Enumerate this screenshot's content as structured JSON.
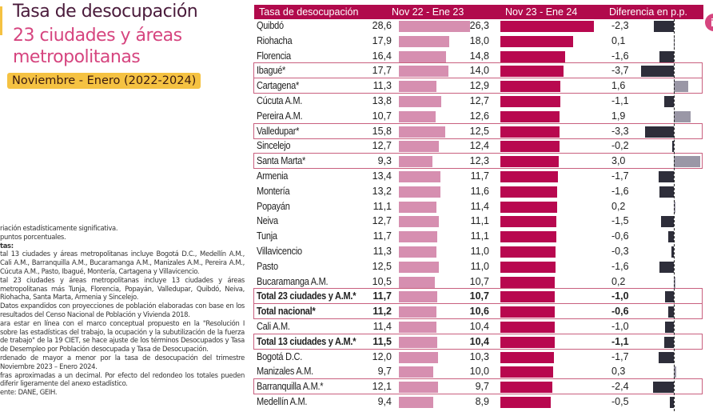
{
  "title": "Tasa de desocupación",
  "subtitle": "23 ciudades y áreas metropolitanas",
  "period": "Noviembre - Enero (2022-2024)",
  "notes": [
    "riación estadísticamente significativa.",
    "puntos porcentuales.",
    "tas:",
    "tal 13 ciudades y áreas metropolitanas incluye Bogotá D.C., Medellín A.M., Cali A.M., Barranquilla A.M., Bucaramanga A.M., Manizales A.M., Pereira A.M., Cúcuta A.M., Pasto, Ibagué, Montería, Cartagena y Villavicencio.",
    "tal 23 ciudades y áreas metropolitanas incluye 13 ciudades y áreas metropolitanas más Tunja, Florencia, Popayán, Valledupar, Quibdó, Neiva, Riohacha, Santa Marta, Armenia y Sincelejo.",
    "Datos expandidos con proyecciones de población elaboradas con base en los resultados del Censo Nacional de Población y Vivienda 2018.",
    "ara estar en línea con el marco conceptual propuesto en la \"Resolución I sobre las estadísticas del trabajo, la ocupación y la subutilización de la fuerza de trabajo\" de la 19 CIET, se hace ajuste de los términos Desocupados y Tasa de Desempleo por Población desocupada y Tasa de Desocupación.",
    "rdenado de mayor a menor por la tasa de desocupación del trimestre Noviembre 2023 – Enero 2024.",
    "fras aproximadas a un decimal. Por efecto del redondeo los totales pueden diferir ligeramente del anexo estadístico.",
    "ente: DANE, GEIH."
  ],
  "colors": {
    "header": "#b10a4c",
    "bar1": "#d68fb0",
    "bar2": "#b8084f",
    "neg": "#2e2e3a",
    "pos": "#9a97a6"
  },
  "chart_data": {
    "type": "table",
    "title": "Tasa de desocupación",
    "columns": [
      "Tasa de desocupación",
      "Nov 22 - Ene 23",
      "Nov 23 - Ene 24",
      "Diferencia en p.p."
    ],
    "rows": [
      {
        "name": "Quibdó",
        "v1": "28,6",
        "v2": "26,3",
        "d": "-2,3"
      },
      {
        "name": "Riohacha",
        "v1": "17,9",
        "v2": "18,0",
        "d": "0,1"
      },
      {
        "name": "Florencia",
        "v1": "16,4",
        "v2": "14,8",
        "d": "-1,6"
      },
      {
        "name": "Ibagué*",
        "v1": "17,7",
        "v2": "14,0",
        "d": "-3,7",
        "box": true
      },
      {
        "name": "Cartagena*",
        "v1": "11,3",
        "v2": "12,9",
        "d": "1,6",
        "box": true
      },
      {
        "name": "Cúcuta A.M.",
        "v1": "13,8",
        "v2": "12,7",
        "d": "-1,1"
      },
      {
        "name": "Pereira A.M.",
        "v1": "10,7",
        "v2": "12,6",
        "d": "1,9"
      },
      {
        "name": "Valledupar*",
        "v1": "15,8",
        "v2": "12,5",
        "d": "-3,3",
        "box": true
      },
      {
        "name": "Sincelejo",
        "v1": "12,7",
        "v2": "12,4",
        "d": "-0,2"
      },
      {
        "name": "Santa Marta*",
        "v1": "9,3",
        "v2": "12,3",
        "d": "3,0",
        "box": true
      },
      {
        "name": "Armenia",
        "v1": "13,4",
        "v2": "11,7",
        "d": "-1,7"
      },
      {
        "name": "Montería",
        "v1": "13,2",
        "v2": "11,6",
        "d": "-1,6"
      },
      {
        "name": "Popayán",
        "v1": "11,1",
        "v2": "11,4",
        "d": "0,2"
      },
      {
        "name": "Neiva",
        "v1": "12,7",
        "v2": "11,1",
        "d": "-1,5"
      },
      {
        "name": "Tunja",
        "v1": "11,7",
        "v2": "11,1",
        "d": "-0,6"
      },
      {
        "name": "Villavicencio",
        "v1": "11,3",
        "v2": "11,0",
        "d": "-0,3"
      },
      {
        "name": "Pasto",
        "v1": "12,5",
        "v2": "11,0",
        "d": "-1,6"
      },
      {
        "name": "Bucaramanga A.M.",
        "v1": "10,5",
        "v2": "10,7",
        "d": "0,2"
      },
      {
        "name": "Total 23 ciudades y A.M.*",
        "v1": "11,7",
        "v2": "10,7",
        "d": "-1,0",
        "box": true,
        "bold": true
      },
      {
        "name": "Total nacional*",
        "v1": "11,2",
        "v2": "10,6",
        "d": "-0,6",
        "box": true,
        "bold": true
      },
      {
        "name": "Cali A.M.",
        "v1": "11,4",
        "v2": "10,4",
        "d": "-1,0"
      },
      {
        "name": "Total 13 ciudades y A.M.*",
        "v1": "11,5",
        "v2": "10,4",
        "d": "-1,1",
        "box": true,
        "bold": true
      },
      {
        "name": "Bogotá D.C.",
        "v1": "12,0",
        "v2": "10,3",
        "d": "-1,7"
      },
      {
        "name": "Manizales A.M.",
        "v1": "9,7",
        "v2": "10,0",
        "d": "0,3"
      },
      {
        "name": "Barranquilla A.M.*",
        "v1": "12,1",
        "v2": "9,7",
        "d": "-2,4",
        "box": true
      },
      {
        "name": "Medellín A.M.",
        "v1": "9,4",
        "v2": "8,9",
        "d": "-0,5"
      }
    ]
  }
}
